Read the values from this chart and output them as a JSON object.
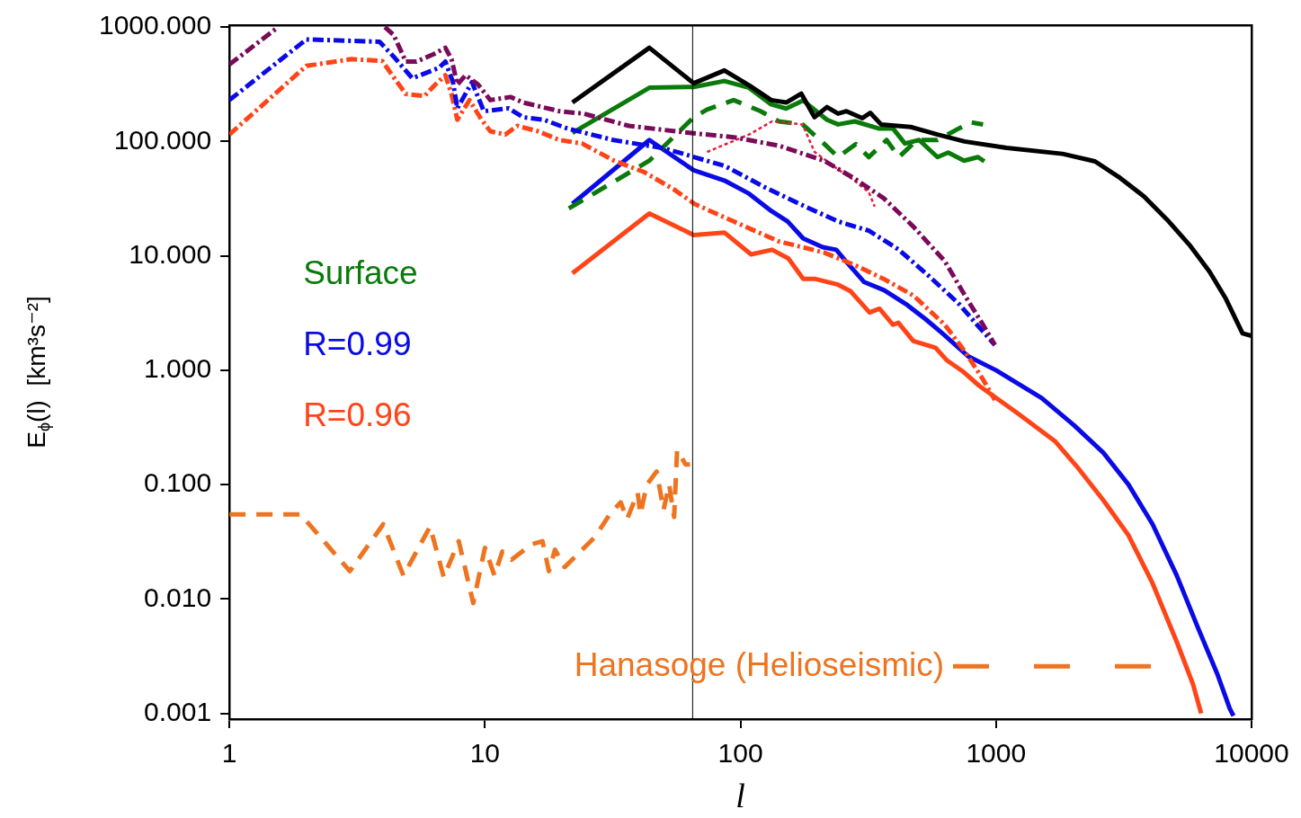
{
  "chart_data": {
    "type": "line",
    "xlabel": "l",
    "ylabel": "E$_{ϕ}$(l)  [km³s⁻²]",
    "log": "xy",
    "grid": false,
    "legend": "left",
    "xlim": [
      1,
      10000
    ],
    "ylim": [
      0.00089,
      1040
    ],
    "xticks": [
      1,
      10,
      100,
      1000,
      10000
    ],
    "yticks": [
      {
        "value": 1000,
        "label": "1000.000"
      },
      {
        "value": 100,
        "label": "100.000"
      },
      {
        "value": 10,
        "label": "10.000"
      },
      {
        "value": 1,
        "label": "1.000"
      },
      {
        "value": 0.1,
        "label": "0.100"
      },
      {
        "value": 0.01,
        "label": "0.010"
      },
      {
        "value": 0.001,
        "label": "0.001"
      }
    ],
    "ref_lines": [
      {
        "axis": "x",
        "value": 65,
        "color": "#000000"
      }
    ],
    "series": [
      {
        "color": "#7a0a5a",
        "line_style": "dashdot",
        "x": [
          1,
          1.55,
          2.5,
          4.06,
          4.4,
          4.9,
          5.4,
          6.3,
          7,
          7.4,
          7.8,
          8.4,
          9.4,
          10.5,
          12.6,
          14.1,
          19.6,
          24.4,
          36.6,
          63,
          94,
          141,
          212,
          277,
          363,
          475,
          630,
          780,
          890,
          990
        ],
        "values": [
          470,
          1000,
          null,
          1000,
          850,
          500,
          500,
          580,
          660,
          525,
          315,
          380,
          315,
          230,
          245,
          219,
          184,
          175,
          137,
          119,
          109,
          92,
          68,
          48,
          32,
          18,
          9,
          4,
          2.5,
          1.66
        ]
      },
      {
        "color": "#0a0ae6",
        "line_style": "dashdot",
        "x": [
          1,
          2,
          3.87,
          4.4,
          5.2,
          6.6,
          7,
          7.5,
          7.8,
          8.9,
          9.9,
          12.4,
          14.1,
          17,
          21,
          31.8,
          50.5,
          66,
          87,
          124,
          170,
          241,
          318,
          417,
          545,
          716,
          843,
          990
        ],
        "values": [
          230,
          780,
          745,
          550,
          357,
          440,
          500,
          330,
          195,
          330,
          184,
          195,
          163,
          155,
          130,
          103,
          87,
          73,
          61,
          40,
          28.5,
          20,
          16.6,
          11.3,
          6.7,
          3.8,
          2.5,
          1.66
        ]
      },
      {
        "color": "#ff4418",
        "line_style": "dashdot",
        "x": [
          1,
          2,
          3,
          3.97,
          4.3,
          4.9,
          5.8,
          6.4,
          7,
          7.4,
          7.8,
          8.7,
          9.7,
          10.5,
          12,
          13.4,
          16.1,
          19.6,
          24,
          32,
          42,
          55,
          66,
          94,
          141,
          212,
          277,
          363,
          475,
          630,
          753,
          890,
          990
        ],
        "values": [
          115,
          458,
          525,
          505,
          390,
          260,
          250,
          315,
          380,
          260,
          155,
          230,
          155,
          123,
          115,
          137,
          123,
          103,
          96,
          68,
          54,
          38,
          28.5,
          20,
          13.4,
          10.7,
          8.4,
          6.3,
          4.5,
          2.5,
          1.47,
          0.83,
          0.55
        ]
      },
      {
        "color": "#e0203c",
        "line_style": "dotted",
        "x": [
          74,
          108,
          133,
          175,
          195,
          241,
          277,
          318,
          335
        ],
        "values": [
          81,
          115,
          150,
          141,
          81,
          57,
          46,
          36,
          27
        ]
      },
      {
        "color": "#000000",
        "line_style": "solid",
        "x": [
          22,
          44,
          65.6,
          86.5,
          108,
          132,
          151,
          173,
          195,
          218,
          241,
          260,
          300,
          322,
          355,
          463,
          590,
          753,
          1100,
          1820,
          2440,
          3020,
          3800,
          4740,
          5710,
          6840,
          7940,
          9220,
          10000
        ],
        "values": [
          219,
          660,
          323,
          418,
          310,
          230,
          219,
          262,
          163,
          200,
          175,
          184,
          160,
          178,
          141,
          134,
          115,
          100,
          88,
          78,
          67,
          49,
          33,
          20,
          12.5,
          7.3,
          4.2,
          2.1,
          2
        ]
      },
      {
        "name": "Surface",
        "color": "#0a7a0a",
        "line_style": "solid",
        "x": [
          22,
          44,
          65.6,
          86.5,
          108,
          132,
          151,
          176,
          218,
          241,
          280,
          347,
          395,
          440,
          500,
          590,
          650,
          750,
          850,
          900
        ],
        "values": [
          119,
          295,
          300,
          338,
          295,
          211,
          194,
          228,
          155,
          141,
          150,
          130,
          130,
          96,
          103,
          73,
          80,
          68,
          73,
          67
        ]
      },
      {
        "color": "#0a7a0a",
        "line_style": "dashed",
        "x": [
          21.3,
          44,
          65.6,
          74,
          94,
          120,
          141,
          175,
          212,
          241,
          283,
          318,
          373,
          417,
          490,
          590,
          716,
          796,
          890
        ],
        "values": [
          26,
          68,
          163,
          190,
          230,
          184,
          150,
          141,
          96,
          73,
          95,
          73,
          103,
          73,
          103,
          103,
          130,
          147,
          141
        ]
      },
      {
        "name": "R=0.99",
        "color": "#0a0ae6",
        "line_style": "solid",
        "x": [
          22,
          44,
          65.6,
          86.5,
          108,
          132,
          153,
          176,
          210,
          237,
          258,
          305,
          365,
          443,
          530,
          620,
          780,
          1000,
          1510,
          2020,
          2630,
          3300,
          4100,
          5100,
          6150,
          7350,
          8220,
          8500
        ],
        "values": [
          28.5,
          103,
          56,
          45.6,
          35,
          24.7,
          20,
          14.2,
          11.9,
          11.3,
          9,
          5.9,
          5,
          3.8,
          2.8,
          2.08,
          1.32,
          1.0,
          0.57,
          0.33,
          0.19,
          0.1,
          0.045,
          0.016,
          0.0057,
          0.0022,
          0.0011,
          0.00095
        ]
      },
      {
        "name": "R=0.96",
        "color": "#ff4418",
        "line_style": "solid",
        "x": [
          22,
          44,
          65.6,
          86.5,
          110,
          133,
          154,
          176,
          195,
          241,
          270,
          320,
          350,
          395,
          415,
          475,
          580,
          640,
          740,
          860,
          1215,
          1700,
          2110,
          2630,
          3300,
          4100,
          5100,
          5900,
          6350
        ],
        "values": [
          7.05,
          23.5,
          15.2,
          16,
          10.3,
          11.3,
          9.5,
          6.3,
          6.3,
          5.6,
          4.9,
          3.2,
          3.45,
          2.5,
          2.6,
          1.8,
          1.57,
          1.23,
          0.98,
          0.73,
          0.42,
          0.24,
          0.137,
          0.073,
          0.036,
          0.0137,
          0.0042,
          0.0018,
          0.001
        ]
      },
      {
        "name": "Hanasoge (Helioseismic)",
        "color": "#ee7420",
        "line_style": "dashed",
        "x": [
          1,
          1.9,
          2.96,
          4.0,
          4.8,
          6.1,
          6.9,
          7.9,
          9,
          10,
          10.9,
          11.7,
          12.7,
          15.2,
          16.8,
          17.8,
          18.8,
          20.5,
          22.8,
          27,
          30.8,
          34,
          36,
          39.6,
          40.6,
          43,
          47,
          50,
          52.6,
          55,
          56.5,
          61,
          63.5
        ],
        "values": [
          0.055,
          0.055,
          0.0175,
          0.045,
          0.016,
          0.043,
          0.0155,
          0.032,
          0.0092,
          0.028,
          0.016,
          0.026,
          0.022,
          0.03,
          0.032,
          0.0175,
          0.027,
          0.019,
          0.024,
          0.035,
          0.055,
          0.07,
          0.05,
          0.085,
          0.055,
          0.1,
          0.13,
          0.06,
          0.1,
          0.052,
          0.2,
          0.15,
          0.15
        ]
      }
    ]
  }
}
